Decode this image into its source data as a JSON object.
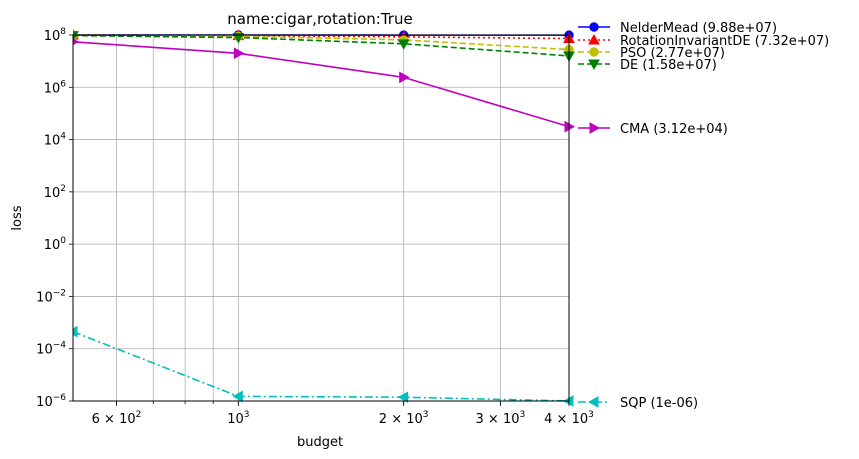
{
  "chart_data": {
    "type": "line",
    "title": "name:cigar,rotation:True",
    "xlabel": "budget",
    "ylabel": "loss",
    "xscale": "log",
    "yscale": "log",
    "xlim": [
      500,
      4000
    ],
    "ylim": [
      1e-06,
      100000000.0
    ],
    "grid": true,
    "legend_position": "outside-right",
    "x": [
      500,
      1000,
      2000,
      4000
    ],
    "x_major_ticks": [
      {
        "value": 1000,
        "base": "10",
        "exp": "3",
        "mant": ""
      },
      {
        "value": 600,
        "base": "10",
        "exp": "2",
        "mant": "6 × "
      },
      {
        "value": 2000,
        "base": "10",
        "exp": "3",
        "mant": "2 × "
      },
      {
        "value": 3000,
        "base": "10",
        "exp": "3",
        "mant": "3 × "
      },
      {
        "value": 4000,
        "base": "10",
        "exp": "3",
        "mant": "4 × "
      }
    ],
    "x_minor_ticks": [
      600,
      700,
      800,
      900,
      2000,
      3000,
      4000
    ],
    "y_ticks": [
      {
        "value": 100000000.0,
        "base": "10",
        "exp": "8"
      },
      {
        "value": 1000000.0,
        "base": "10",
        "exp": "6"
      },
      {
        "value": 10000.0,
        "base": "10",
        "exp": "4"
      },
      {
        "value": 100.0,
        "base": "10",
        "exp": "2"
      },
      {
        "value": 1,
        "base": "10",
        "exp": "0"
      },
      {
        "value": 0.01,
        "base": "10",
        "exp": "−2"
      },
      {
        "value": 0.0001,
        "base": "10",
        "exp": "−4"
      },
      {
        "value": 1e-06,
        "base": "10",
        "exp": "−6"
      }
    ],
    "series": [
      {
        "name": "NelderMead (9.88e+07)",
        "color": "#0000ff",
        "dash": "solid",
        "marker": "circle",
        "values": [
          100000000.0,
          100000000.0,
          99000000.0,
          98800000.0
        ]
      },
      {
        "name": "RotationInvariantDE (7.32e+07)",
        "color": "#ff0000",
        "dash": "dotted",
        "marker": "triangle-up",
        "values": [
          100000000.0,
          95000000.0,
          85000000.0,
          73200000.0
        ]
      },
      {
        "name": "PSO (2.77e+07)",
        "color": "#bfbf00",
        "dash": "dashed",
        "marker": "circle",
        "values": [
          100000000.0,
          90000000.0,
          65000000.0,
          27700000.0
        ]
      },
      {
        "name": "DE (1.58e+07)",
        "color": "#008000",
        "dash": "dashed",
        "marker": "triangle-down",
        "values": [
          95000000.0,
          80000000.0,
          46000000.0,
          15800000.0
        ]
      },
      {
        "name": "CMA (3.12e+04)",
        "color": "#bf00bf",
        "dash": "solid",
        "marker": "triangle-right",
        "values": [
          55000000.0,
          20000000.0,
          2400000.0,
          31200.0
        ]
      },
      {
        "name": "SQP (1e-06)",
        "color": "#00bfbf",
        "dash": "dashdot",
        "marker": "triangle-left",
        "values": [
          0.00045,
          1.5e-06,
          1.4e-06,
          1e-06
        ]
      }
    ]
  }
}
